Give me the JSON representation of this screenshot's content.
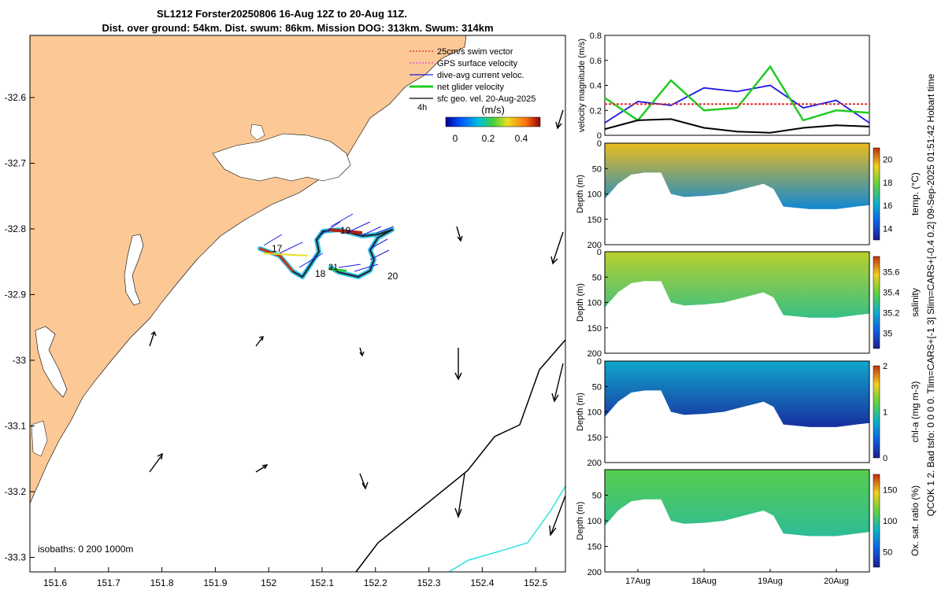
{
  "title": {
    "line1": "SL1212 Forster20250806 16-Aug 12Z to 20-Aug 11Z.",
    "line2": "Dist. over ground: 54km. Dist. swum: 86km. Mission DOG: 313km. Swum: 314km"
  },
  "right_label": "QCOK 1  2. Bad tsfo: 0  0  0  0. Tlim=CARS+[-1 3] Slim=CARS+[-0.4 0.2] 09-Sep-2025 01:51:42 Hobart time",
  "map": {
    "x_ticks": [
      "151.6",
      "151.7",
      "151.8",
      "151.9",
      "152",
      "152.1",
      "152.2",
      "152.3",
      "152.4",
      "152.5"
    ],
    "y_ticks": [
      "-32.6",
      "-32.7",
      "-32.8",
      "-32.9",
      "-33",
      "-33.1",
      "-33.2",
      "-33.3"
    ],
    "legend": [
      {
        "label": "25cm/s swim vector",
        "color": "#e0201e"
      },
      {
        "label": "GPS surface velocity",
        "color": "#e040e0"
      },
      {
        "label": "dive-avg current veloc.",
        "color": "#1a1ae0"
      },
      {
        "label": "net glider velocity",
        "color": "#22cc22"
      },
      {
        "label": "sfc geo. vel. 20-Aug-2025",
        "color": "#000000"
      }
    ],
    "colorbar_label": "(m/s)",
    "colorbar_ticks": [
      "0",
      "0.2",
      "0.4"
    ],
    "isobaths_label": "isobaths: 0   200  1000m",
    "track_labels": [
      "17",
      "18",
      "19",
      "20",
      "21"
    ],
    "mini_label": "4h"
  },
  "chart_data": [
    {
      "type": "line",
      "title": "velocity magnitude",
      "ylabel": "velocity magnitude (m/s)",
      "ylim": [
        0,
        0.8
      ],
      "y_ticks": [
        "0",
        "0.2",
        "0.4",
        "0.6",
        "0.8"
      ],
      "x": [
        16.5,
        17.0,
        17.5,
        18.0,
        18.5,
        19.0,
        19.5,
        20.0,
        20.5
      ],
      "series": [
        {
          "name": "dive-avg current",
          "color": "#1a1ae0",
          "values": [
            0.1,
            0.27,
            0.24,
            0.38,
            0.35,
            0.4,
            0.22,
            0.28,
            0.1
          ]
        },
        {
          "name": "net glider",
          "color": "#22cc22",
          "values": [
            0.3,
            0.12,
            0.44,
            0.2,
            0.22,
            0.55,
            0.12,
            0.2,
            0.18
          ]
        },
        {
          "name": "swim",
          "color": "#e0201e",
          "values": [
            0.25,
            0.25,
            0.25,
            0.25,
            0.25,
            0.25,
            0.25,
            0.25,
            0.25
          ]
        },
        {
          "name": "sfc geo",
          "color": "#000000",
          "values": [
            0.05,
            0.12,
            0.13,
            0.06,
            0.03,
            0.02,
            0.06,
            0.08,
            0.07
          ]
        }
      ]
    },
    {
      "type": "heatmap",
      "title": "temperature",
      "ylabel": "Depth (m)",
      "clabel": "temp. (°C)",
      "ylim": [
        200,
        0
      ],
      "y_ticks": [
        "0",
        "50",
        "100",
        "150",
        "200"
      ],
      "clim": [
        13,
        21
      ],
      "c_ticks": [
        "14",
        "16",
        "18",
        "20"
      ],
      "c_vals": [
        14,
        16,
        18,
        20
      ],
      "surface_value": 19.6,
      "deep_value": 15.4
    },
    {
      "type": "heatmap",
      "title": "salinity",
      "ylabel": "Depth (m)",
      "clabel": "salinity",
      "ylim": [
        200,
        0
      ],
      "y_ticks": [
        "0",
        "50",
        "100",
        "150",
        "200"
      ],
      "clim": [
        34.85,
        35.75
      ],
      "c_ticks": [
        "35",
        "35.2",
        "35.4",
        "35.6"
      ],
      "c_vals": [
        35,
        35.2,
        35.4,
        35.6
      ],
      "surface_value": 35.5,
      "deep_value": 35.3
    },
    {
      "type": "heatmap",
      "title": "chlorophyll",
      "ylabel": "Depth (m)",
      "clabel": "chl-a (mg m-3)",
      "ylim": [
        200,
        0
      ],
      "y_ticks": [
        "0",
        "50",
        "100",
        "150",
        "200"
      ],
      "clim": [
        0,
        2
      ],
      "c_ticks": [
        "0",
        "1",
        "2"
      ],
      "c_vals": [
        0,
        1,
        2
      ],
      "surface_value": 0.75,
      "deep_value": 0.1
    },
    {
      "type": "heatmap",
      "title": "oxygen",
      "ylabel": "Depth (m)",
      "clabel": "Ox. sat. ratio (%)",
      "ylim": [
        200,
        0
      ],
      "y_ticks": [
        "50",
        "100",
        "150",
        "200"
      ],
      "clim": [
        25,
        175
      ],
      "c_ticks": [
        "50",
        "100",
        "150"
      ],
      "c_vals": [
        50,
        100,
        150
      ],
      "surface_value": 112,
      "deep_value": 96
    }
  ],
  "time_axis": {
    "ticks": [
      "17Aug",
      "18Aug",
      "19Aug",
      "20Aug"
    ],
    "tick_days": [
      17,
      18,
      19,
      20
    ],
    "xlim": [
      16.5,
      20.5
    ]
  }
}
